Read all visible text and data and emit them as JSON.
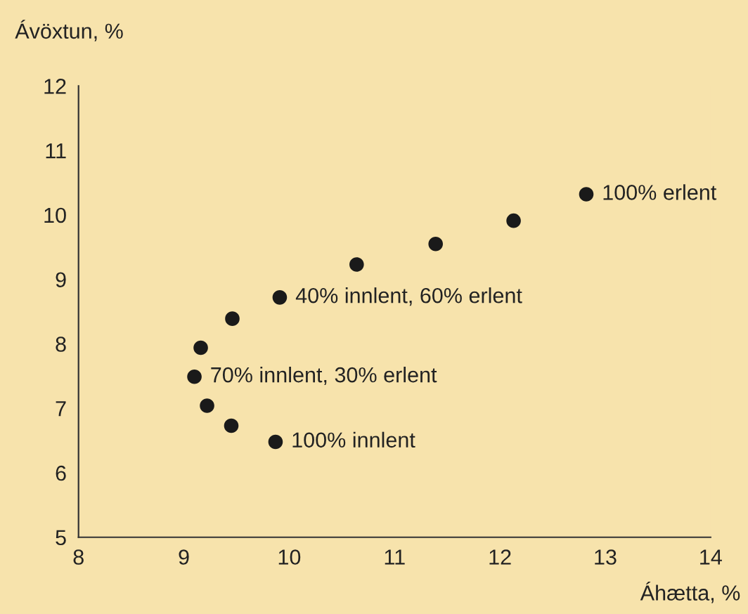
{
  "chart_data": {
    "type": "scatter",
    "xlabel": "Áhætta, %",
    "ylabel": "Ávöxtun, %",
    "x": [
      12.82,
      12.13,
      11.39,
      10.64,
      9.91,
      9.46,
      9.16,
      9.1,
      9.22,
      9.45,
      9.87
    ],
    "series": [
      {
        "color": "#1a1a1a",
        "values": [
          10.32,
          9.91,
          9.55,
          9.23,
          8.72,
          8.39,
          7.94,
          7.49,
          7.04,
          6.73,
          6.48
        ]
      }
    ],
    "marker": "circle",
    "xlim": [
      8,
      14
    ],
    "xticks": [
      8,
      9,
      10,
      11,
      12,
      13,
      14
    ],
    "ylim": [
      5,
      12
    ],
    "yticks": [
      5,
      6,
      7,
      8,
      9,
      10,
      11,
      12
    ],
    "grid": false,
    "legend": false,
    "annotations": [
      {
        "text": "100% erlent",
        "x": 12.82,
        "y": 10.32
      },
      {
        "text": "40% innlent, 60% erlent",
        "x": 9.91,
        "y": 8.72
      },
      {
        "text": "70% innlent, 30% erlent",
        "x": 9.1,
        "y": 7.49
      },
      {
        "text": "100% innlent",
        "x": 9.87,
        "y": 6.48
      }
    ]
  }
}
